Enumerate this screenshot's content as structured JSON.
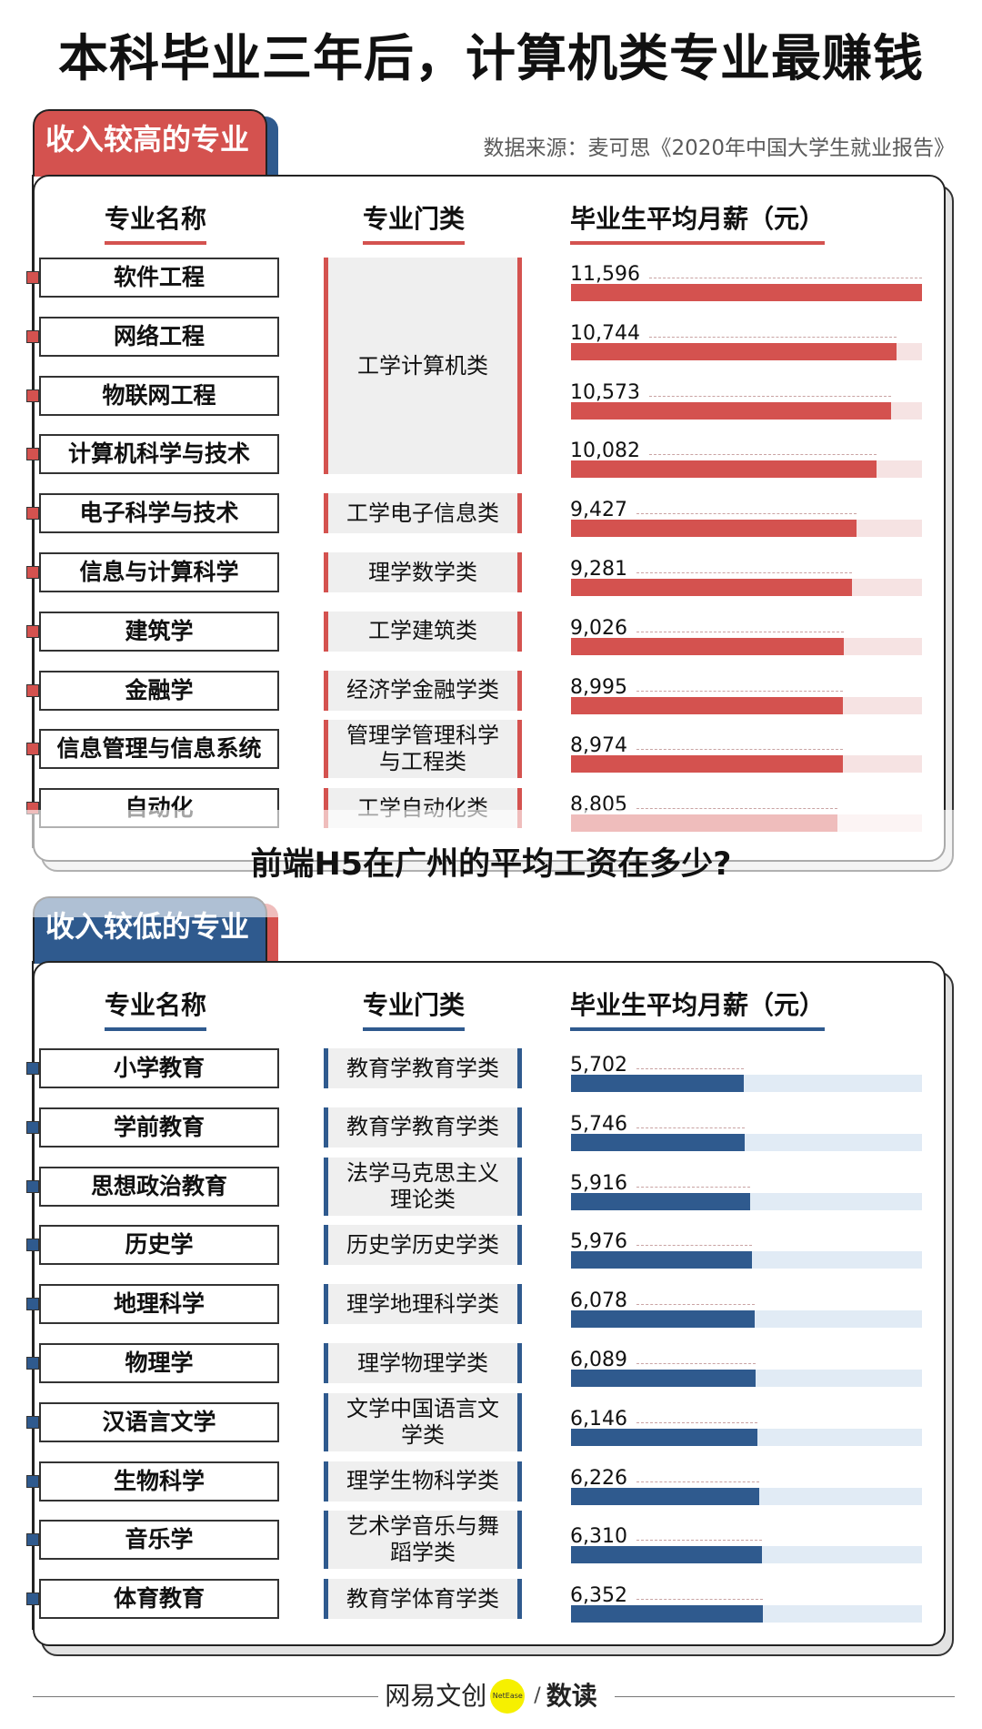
{
  "title": "本科毕业三年后，计算机类专业最赚钱",
  "source": "数据来源：麦可思《2020年中国大学生就业报告》",
  "columns": {
    "name": "专业名称",
    "category": "专业门类",
    "salary": "毕业生平均月薪（元）"
  },
  "colors": {
    "high_accent": "#d4524f",
    "high_track": "#f6e3e3",
    "low_accent": "#2f5a8e",
    "low_track": "#e1ebf5",
    "category_bg": "#efefef"
  },
  "high": {
    "tab_label": "收入较高的专业",
    "rows": [
      {
        "name": "软件工程",
        "category": "工学计算机类",
        "value": 11596,
        "label": "11,596"
      },
      {
        "name": "网络工程",
        "category": "工学计算机类",
        "value": 10744,
        "label": "10,744"
      },
      {
        "name": "物联网工程",
        "category": "工学计算机类",
        "value": 10573,
        "label": "10,573"
      },
      {
        "name": "计算机科学与技术",
        "category": "工学计算机类",
        "value": 10082,
        "label": "10,082"
      },
      {
        "name": "电子科学与技术",
        "category": "工学电子信息类",
        "value": 9427,
        "label": "9,427"
      },
      {
        "name": "信息与计算科学",
        "category": "理学数学类",
        "value": 9281,
        "label": "9,281"
      },
      {
        "name": "建筑学",
        "category": "工学建筑类",
        "value": 9026,
        "label": "9,026"
      },
      {
        "name": "金融学",
        "category": "经济学金融学类",
        "value": 8995,
        "label": "8,995"
      },
      {
        "name": "信息管理与信息系统",
        "category": "管理学管理科学与工程类",
        "value": 8974,
        "label": "8,974"
      },
      {
        "name": "自动化",
        "category": "工学自动化类",
        "value": 8805,
        "label": "8,805"
      }
    ],
    "category_groups": [
      {
        "text": "工学计算机类",
        "start": 0,
        "span": 4
      },
      {
        "text": "工学电子信息类",
        "start": 4,
        "span": 1
      },
      {
        "text": "理学数学类",
        "start": 5,
        "span": 1
      },
      {
        "text": "工学建筑类",
        "start": 6,
        "span": 1
      },
      {
        "text": "经济学金融学类",
        "start": 7,
        "span": 1
      },
      {
        "text": "管理学管理科学与工程类",
        "start": 8,
        "span": 1
      },
      {
        "text": "工学自动化类",
        "start": 9,
        "span": 1
      }
    ]
  },
  "low": {
    "tab_label": "收入较低的专业",
    "rows": [
      {
        "name": "小学教育",
        "category": "教育学教育学类",
        "value": 5702,
        "label": "5,702"
      },
      {
        "name": "学前教育",
        "category": "教育学教育学类",
        "value": 5746,
        "label": "5,746"
      },
      {
        "name": "思想政治教育",
        "category": "法学马克思主义理论类",
        "value": 5916,
        "label": "5,916"
      },
      {
        "name": "历史学",
        "category": "历史学历史学类",
        "value": 5976,
        "label": "5,976"
      },
      {
        "name": "地理科学",
        "category": "理学地理科学类",
        "value": 6078,
        "label": "6,078"
      },
      {
        "name": "物理学",
        "category": "理学物理学类",
        "value": 6089,
        "label": "6,089"
      },
      {
        "name": "汉语言文学",
        "category": "文学中国语言文学类",
        "value": 6146,
        "label": "6,146"
      },
      {
        "name": "生物科学",
        "category": "理学生物科学类",
        "value": 6226,
        "label": "6,226"
      },
      {
        "name": "音乐学",
        "category": "艺术学音乐与舞蹈学类",
        "value": 6310,
        "label": "6,310"
      },
      {
        "name": "体育教育",
        "category": "教育学体育学类",
        "value": 6352,
        "label": "6,352"
      }
    ]
  },
  "overlay_question": "前端H5在广州的平均工资在多少?",
  "footer": {
    "brand": "网易文创",
    "badge": "NetEase",
    "separator": "/",
    "sub_brand": "数读"
  },
  "chart_data": [
    {
      "type": "bar",
      "title": "收入较高的专业",
      "xlabel": "毕业生平均月薪（元）",
      "ylabel": "专业名称",
      "categories": [
        "软件工程",
        "网络工程",
        "物联网工程",
        "计算机科学与技术",
        "电子科学与技术",
        "信息与计算科学",
        "建筑学",
        "金融学",
        "信息管理与信息系统",
        "自动化"
      ],
      "values": [
        11596,
        10744,
        10573,
        10082,
        9427,
        9281,
        9026,
        8995,
        8974,
        8805
      ],
      "orientation": "horizontal",
      "xlim": [
        0,
        11596
      ]
    },
    {
      "type": "bar",
      "title": "收入较低的专业",
      "xlabel": "毕业生平均月薪（元）",
      "ylabel": "专业名称",
      "categories": [
        "小学教育",
        "学前教育",
        "思想政治教育",
        "历史学",
        "地理科学",
        "物理学",
        "汉语言文学",
        "生物科学",
        "音乐学",
        "体育教育"
      ],
      "values": [
        5702,
        5746,
        5916,
        5976,
        6078,
        6089,
        6146,
        6226,
        6310,
        6352
      ],
      "orientation": "horizontal",
      "xlim": [
        0,
        11596
      ]
    }
  ]
}
